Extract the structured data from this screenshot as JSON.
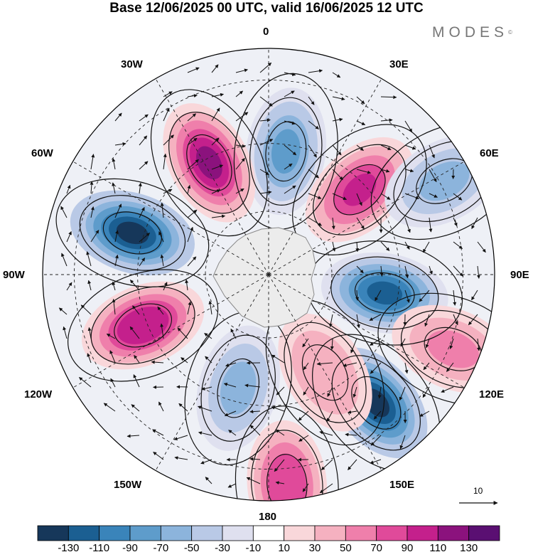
{
  "header": {
    "title": "Base 12/06/2025 00 UTC, valid 16/06/2025 12 UTC",
    "brand": "MODES",
    "brand_mark": "©"
  },
  "map": {
    "projection": "polar-stereographic-south",
    "longitude_labels": {
      "lon_0": "0",
      "lon_30e": "30E",
      "lon_60e": "60E",
      "lon_90e": "90E",
      "lon_120e": "120E",
      "lon_150e": "150E",
      "lon_180": "180",
      "lon_150w": "150W",
      "lon_120w": "120W",
      "lon_90w": "90W",
      "lon_60w": "60W",
      "lon_30w": "30W"
    },
    "reference_vector_value": "10",
    "anomaly_centers": [
      {
        "lon": 8,
        "r": 0.55,
        "sign": "negative",
        "peak": -80
      },
      {
        "lon": 47,
        "r": 0.55,
        "sign": "positive",
        "peak": 100
      },
      {
        "lon": 62,
        "r": 0.88,
        "sign": "negative",
        "peak": -50
      },
      {
        "lon": 99,
        "r": 0.52,
        "sign": "negative",
        "peak": -110
      },
      {
        "lon": 112,
        "r": 0.88,
        "sign": "positive",
        "peak": 60
      },
      {
        "lon": 140,
        "r": 0.74,
        "sign": "negative",
        "peak": -130
      },
      {
        "lon": 150,
        "r": 0.5,
        "sign": "positive",
        "peak": 50
      },
      {
        "lon": 175,
        "r": 0.93,
        "sign": "positive",
        "peak": 90
      },
      {
        "lon": -165,
        "r": 0.52,
        "sign": "negative",
        "peak": -60
      },
      {
        "lon": -112,
        "r": 0.6,
        "sign": "positive",
        "peak": 110
      },
      {
        "lon": -73,
        "r": 0.63,
        "sign": "negative",
        "peak": -130
      },
      {
        "lon": -28,
        "r": 0.56,
        "sign": "positive",
        "peak": 120
      }
    ]
  },
  "legend": {
    "tick_labels": [
      "-130",
      "-110",
      "-90",
      "-70",
      "-50",
      "-30",
      "-10",
      "10",
      "30",
      "50",
      "70",
      "90",
      "110",
      "130"
    ],
    "colors": [
      "#16375a",
      "#1b5f92",
      "#3a84ba",
      "#5e9ccb",
      "#8cb4dc",
      "#b9c9e6",
      "#dfe0ef",
      "#ffffff",
      "#f9d7da",
      "#f5b1c0",
      "#ef7fab",
      "#e04a9a",
      "#c4208c",
      "#8b127d",
      "#5a0f72"
    ]
  }
}
